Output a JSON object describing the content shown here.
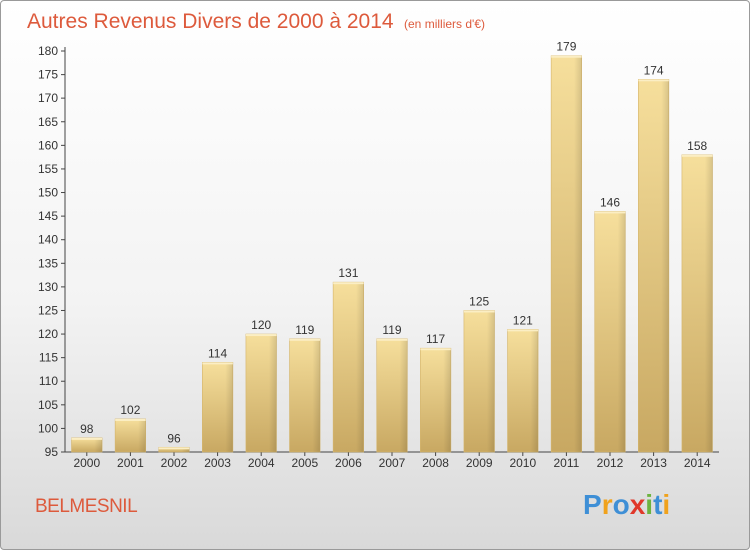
{
  "chart_data": {
    "type": "bar",
    "title": "Autres Revenus Divers de 2000 à 2014",
    "subtitle": "(en milliers d'€)",
    "categories": [
      "2000",
      "2001",
      "2002",
      "2003",
      "2004",
      "2005",
      "2006",
      "2007",
      "2008",
      "2009",
      "2010",
      "2011",
      "2012",
      "2013",
      "2014"
    ],
    "values": [
      98,
      102,
      96,
      114,
      120,
      119,
      131,
      119,
      117,
      125,
      121,
      179,
      146,
      174,
      158
    ],
    "ylim": [
      95,
      180
    ],
    "yticks": [
      95,
      100,
      105,
      110,
      115,
      120,
      125,
      130,
      135,
      140,
      145,
      150,
      155,
      160,
      165,
      170,
      175,
      180
    ],
    "grid": false,
    "bar_color": "#e2c47a",
    "text_color": "#dd5a3c"
  },
  "footer": {
    "location": "BELMESNIL",
    "brand": [
      "P",
      "r",
      "o",
      "x",
      "i",
      "t",
      "i"
    ],
    "brand_colors": [
      "#3e8fd6",
      "#f0a21c",
      "#3e8fd6",
      "#e0382a",
      "#6cb33f",
      "#3e8fd6",
      "#f0a21c"
    ]
  }
}
